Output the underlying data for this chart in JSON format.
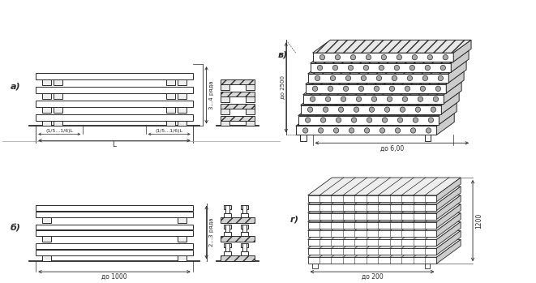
{
  "bg_color": "#ffffff",
  "line_color": "#2a2a2a",
  "label_a": "а)",
  "label_b": "б)",
  "label_v": "в)",
  "label_g": "г)",
  "dim_a_rows": "3...4 ряда",
  "dim_b_rows": "2...3 ряда",
  "dim_a_l": "L",
  "dim_a_l1": "(1/5...1/6)L",
  "dim_a_l2": "(1/5...1/6)L",
  "dim_b_w": "до 1000",
  "dim_v_h": "до 2500",
  "dim_v_l": "до 6,00",
  "dim_g_w": "до 200",
  "dim_g_h": "1200"
}
